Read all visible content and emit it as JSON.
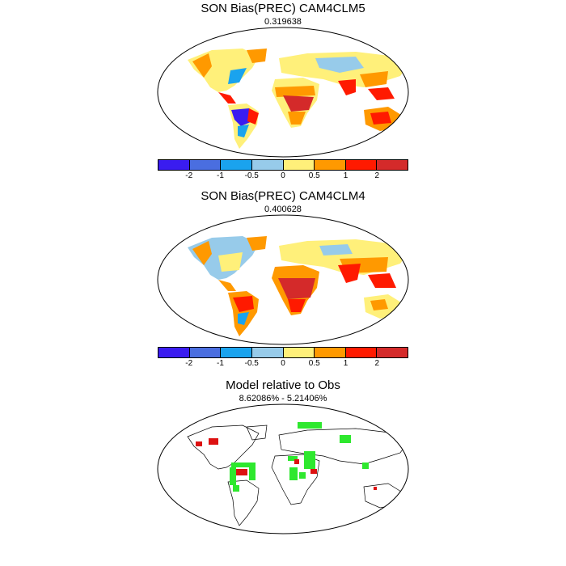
{
  "panels": [
    {
      "title": "SON Bias(PREC) CAM4CLM5",
      "subtitle": "0.319638",
      "colorbar": {
        "colors": [
          "#3a1cf0",
          "#4a6ee0",
          "#1aa3ee",
          "#97cbea",
          "#fff07a",
          "#ff9900",
          "#ff1a00",
          "#d42a2a"
        ],
        "labels": [
          "-2",
          "-1",
          "-0.5",
          "0",
          "0.5",
          "1",
          "2"
        ]
      }
    },
    {
      "title": "SON Bias(PREC) CAM4CLM4",
      "subtitle": "0.400628",
      "colorbar": {
        "colors": [
          "#3a1cf0",
          "#4a6ee0",
          "#1aa3ee",
          "#97cbea",
          "#fff07a",
          "#ff9900",
          "#ff1a00",
          "#d42a2a"
        ],
        "labels": [
          "-2",
          "-1",
          "-0.5",
          "0",
          "0.5",
          "1",
          "2"
        ]
      }
    },
    {
      "title": "Model relative to Obs",
      "subtitle": "8.62086% - 5.21406%"
    }
  ],
  "colors": {
    "wet": "#ff1a00",
    "dry": "#3a1cf0",
    "green": "#2ee82e",
    "red": "#dd1111"
  }
}
